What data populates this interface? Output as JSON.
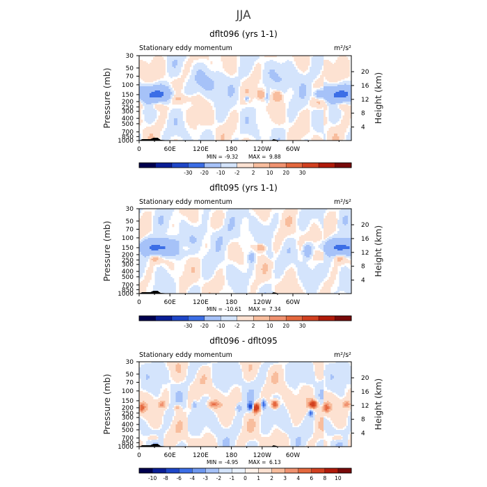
{
  "figure_title": "JJA",
  "palette": {
    "neg": [
      "#00004e",
      "#0a1e96",
      "#1e46c8",
      "#3c6ee6",
      "#6e98f0",
      "#a6c2f8",
      "#d4e4fc"
    ],
    "pos": [
      "#fde2d2",
      "#f8bd9d",
      "#f09270",
      "#e4683e",
      "#d14020",
      "#b01a0a",
      "#780a0a"
    ],
    "land": "#000000"
  },
  "chart_data": [
    {
      "type": "heatmap",
      "title": "dflt096 (yrs 1-1)",
      "subtitle_left": "Stationary eddy momentum",
      "units": "m²/s²",
      "ylabel_left": "Pressure (mb)",
      "ylabel_right": "Height (km)",
      "y_ticks_left": [
        "30",
        "50",
        "70",
        "100",
        "150",
        "200",
        "250",
        "300",
        "400",
        "500",
        "700",
        "850",
        "1000"
      ],
      "y_ticks_right": [
        "20",
        "16",
        "12",
        "8",
        "4"
      ],
      "x_ticks": [
        "0",
        "60E",
        "120E",
        "180",
        "120W",
        "60W"
      ],
      "stats": {
        "min_label": "MIN =",
        "min": "-9.32",
        "max_label": "MAX =",
        "max": "9.88"
      },
      "colorbar_labels": [
        "-30",
        "-20",
        "-10",
        "-2",
        "2",
        "10",
        "20",
        "30"
      ],
      "features": [
        {
          "lon": 32,
          "p": 150,
          "value": -12,
          "wlon": 22,
          "wp": 0.22
        },
        {
          "lon": 35,
          "p": 225,
          "value": 4,
          "wlon": 10,
          "wp": 0.14
        },
        {
          "lon": 355,
          "p": 200,
          "value": 3,
          "wlon": 12,
          "wp": 0.2
        },
        {
          "lon": 80,
          "p": 175,
          "value": 2,
          "wlon": 20,
          "wp": 0.12
        },
        {
          "lon": 210,
          "p": 175,
          "value": -5,
          "wlon": 3,
          "wp": 0.08
        },
        {
          "lon": 237,
          "p": 150,
          "value": 7,
          "wlon": 5,
          "wp": 0.12
        },
        {
          "lon": 250,
          "p": 160,
          "value": -4,
          "wlon": 3,
          "wp": 0.16
        },
        {
          "lon": 270,
          "p": 160,
          "value": 8,
          "wlon": 5,
          "wp": 0.12
        },
        {
          "lon": 350,
          "p": 150,
          "value": -5,
          "wlon": 6,
          "wp": 0.14
        },
        {
          "lon": 150,
          "p": 90,
          "value": -2,
          "wlon": 30,
          "wp": 0.35
        },
        {
          "lon": 300,
          "p": 70,
          "value": -2,
          "wlon": 25,
          "wp": 0.35
        }
      ]
    },
    {
      "type": "heatmap",
      "title": "dflt095 (yrs 1-1)",
      "subtitle_left": "Stationary eddy momentum",
      "units": "m²/s²",
      "ylabel_left": "Pressure (mb)",
      "ylabel_right": "Height (km)",
      "y_ticks_left": [
        "30",
        "50",
        "70",
        "100",
        "150",
        "200",
        "250",
        "300",
        "400",
        "500",
        "700",
        "850",
        "1000"
      ],
      "y_ticks_right": [
        "20",
        "16",
        "12",
        "8",
        "4"
      ],
      "x_ticks": [
        "0",
        "60E",
        "120E",
        "180",
        "120W",
        "60W"
      ],
      "stats": {
        "min_label": "MIN =",
        "min": "-10.61",
        "max_label": "MAX =",
        "max": "7.34"
      },
      "colorbar_labels": [
        "-30",
        "-20",
        "-10",
        "-2",
        "2",
        "10",
        "20",
        "30"
      ],
      "features": [
        {
          "lon": 40,
          "p": 150,
          "value": -13,
          "wlon": 24,
          "wp": 0.22
        },
        {
          "lon": 30,
          "p": 225,
          "value": 4,
          "wlon": 8,
          "wp": 0.14
        },
        {
          "lon": 355,
          "p": 200,
          "value": 2,
          "wlon": 10,
          "wp": 0.18
        },
        {
          "lon": 85,
          "p": 150,
          "value": 2,
          "wlon": 15,
          "wp": 0.12
        },
        {
          "lon": 220,
          "p": 225,
          "value": -5,
          "wlon": 4,
          "wp": 0.14
        },
        {
          "lon": 238,
          "p": 150,
          "value": 6,
          "wlon": 6,
          "wp": 0.1
        },
        {
          "lon": 328,
          "p": 170,
          "value": -7,
          "wlon": 6,
          "wp": 0.2
        },
        {
          "lon": 255,
          "p": 200,
          "value": -2,
          "wlon": 4,
          "wp": 0.14
        },
        {
          "lon": 160,
          "p": 90,
          "value": -2,
          "wlon": 30,
          "wp": 0.35
        }
      ]
    },
    {
      "type": "heatmap",
      "title": "dflt096 - dflt095",
      "subtitle_left": "Stationary eddy momentum",
      "units": "m²/s²",
      "ylabel_left": "Pressure (mb)",
      "ylabel_right": "Height (km)",
      "y_ticks_left": [
        "30",
        "50",
        "70",
        "100",
        "150",
        "200",
        "250",
        "300",
        "400",
        "500",
        "700",
        "850",
        "1000"
      ],
      "y_ticks_right": [
        "20",
        "16",
        "12",
        "8",
        "4"
      ],
      "x_ticks": [
        "0",
        "60E",
        "120E",
        "180",
        "120W",
        "60W"
      ],
      "stats": {
        "min_label": "MIN =",
        "min": "-4.95",
        "max_label": "MAX =",
        "max": "6.13"
      },
      "colorbar_labels": [
        "-10",
        "-8",
        "-6",
        "-4",
        "-3",
        "-2",
        "-1",
        "0",
        "1",
        "2",
        "3",
        "4",
        "6",
        "8",
        "10"
      ],
      "features": [
        {
          "lon": 5,
          "p": 200,
          "value": 3.5,
          "wlon": 5,
          "wp": 0.14
        },
        {
          "lon": 45,
          "p": 175,
          "value": 2.5,
          "wlon": 5,
          "wp": 0.1
        },
        {
          "lon": 75,
          "p": 200,
          "value": 2,
          "wlon": 5,
          "wp": 0.1
        },
        {
          "lon": 145,
          "p": 175,
          "value": 3,
          "wlon": 8,
          "wp": 0.1
        },
        {
          "lon": 108,
          "p": 175,
          "value": -2,
          "wlon": 3,
          "wp": 0.12
        },
        {
          "lon": 195,
          "p": 200,
          "value": -2,
          "wlon": 4,
          "wp": 0.12
        },
        {
          "lon": 218,
          "p": 190,
          "value": -5,
          "wlon": 4,
          "wp": 0.12
        },
        {
          "lon": 228,
          "p": 200,
          "value": 6,
          "wlon": 5,
          "wp": 0.14
        },
        {
          "lon": 243,
          "p": 175,
          "value": -4,
          "wlon": 3,
          "wp": 0.14
        },
        {
          "lon": 265,
          "p": 175,
          "value": 5,
          "wlon": 5,
          "wp": 0.12
        },
        {
          "lon": 340,
          "p": 175,
          "value": 5.5,
          "wlon": 6,
          "wp": 0.12
        },
        {
          "lon": 335,
          "p": 250,
          "value": -4,
          "wlon": 3,
          "wp": 0.1
        },
        {
          "lon": 28,
          "p": 700,
          "value": 1.5,
          "wlon": 8,
          "wp": 0.1
        }
      ]
    }
  ]
}
